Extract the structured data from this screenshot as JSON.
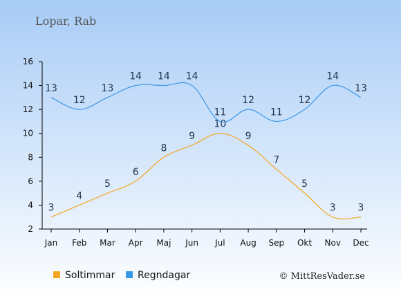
{
  "location_title": "Lopar, Rab",
  "credit": "© MittResVader.se",
  "colors": {
    "background_top": "#a8ccf6",
    "background_bottom": "#ffffff",
    "sun": "#f5a623",
    "rain": "#3a97e8",
    "label": "#1f3450",
    "axis": "#000000"
  },
  "chart_data": {
    "type": "line",
    "categories": [
      "Jan",
      "Feb",
      "Mar",
      "Apr",
      "Maj",
      "Jun",
      "Jul",
      "Aug",
      "Sep",
      "Okt",
      "Nov",
      "Dec"
    ],
    "series": [
      {
        "name": "Soltimmar",
        "color": "#f5a623",
        "values": [
          3,
          4,
          5,
          6,
          8,
          9,
          10,
          9,
          7,
          5,
          3,
          3
        ]
      },
      {
        "name": "Regndagar",
        "color": "#3a97e8",
        "values": [
          13,
          12,
          13,
          14,
          14,
          14,
          11,
          12,
          11,
          12,
          14,
          13
        ]
      }
    ],
    "ylim": [
      2,
      16
    ],
    "yticks": [
      2,
      4,
      6,
      8,
      10,
      12,
      14,
      16
    ],
    "legend_position": "bottom-left",
    "grid": false,
    "data_labels": true
  }
}
